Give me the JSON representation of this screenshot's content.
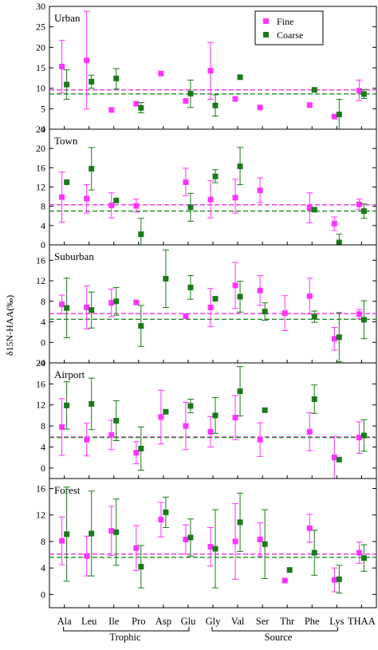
{
  "chart_data": {
    "type": "scatter",
    "ylabel": "δ15N-HAA(‰)",
    "categories": [
      "Ala",
      "Leu",
      "Ile",
      "Pro",
      "Asp",
      "Glu",
      "Gly",
      "Val",
      "Ser",
      "Thr",
      "Phe",
      "Lys",
      "THAA"
    ],
    "groups": [
      {
        "label": "Trophic",
        "from": "Ala",
        "to": "Glu"
      },
      {
        "label": "Source",
        "from": "Gly",
        "to": "Lys"
      }
    ],
    "legend": {
      "entries": [
        "Fine",
        "Coarse"
      ],
      "placement": "top-right"
    },
    "colors": {
      "Fine": "#ff33ff",
      "Coarse": "#1a7a1a",
      "fine_dash": "#e830e8",
      "coarse_dash": "#2a8a2a"
    },
    "panels": [
      {
        "title": "Urban",
        "ylim": [
          0,
          30
        ],
        "yticks": [
          0,
          5,
          10,
          15,
          20,
          25,
          30
        ],
        "fine_mean": 9.6,
        "coarse_mean": 8.6,
        "fine": [
          [
            15.3,
            8.8,
            21.7
          ],
          [
            16.8,
            4.9,
            28.8
          ],
          [
            4.7,
            null,
            null
          ],
          [
            6.2,
            null,
            null
          ],
          [
            13.6,
            null,
            null
          ],
          [
            6.9,
            null,
            null
          ],
          [
            14.3,
            7.3,
            21.2
          ],
          [
            7.4,
            null,
            null
          ],
          [
            5.3,
            null,
            null
          ],
          [
            null,
            null,
            null
          ],
          [
            5.9,
            null,
            null
          ],
          [
            3.1,
            null,
            null
          ],
          [
            9.4,
            7.0,
            12.0
          ]
        ],
        "coarse": [
          [
            10.9,
            7.3,
            14.5
          ],
          [
            11.6,
            10.0,
            13.2
          ],
          [
            12.4,
            9.8,
            14.8
          ],
          [
            5.2,
            4.0,
            6.5
          ],
          [
            null,
            null,
            null
          ],
          [
            8.7,
            5.3,
            12.0
          ],
          [
            5.8,
            3.2,
            8.4
          ],
          [
            12.7,
            null,
            null
          ],
          [
            null,
            null,
            null
          ],
          [
            null,
            null,
            null
          ],
          [
            9.6,
            null,
            null
          ],
          [
            3.6,
            -0.2,
            7.3
          ],
          [
            8.6,
            7.5,
            9.7
          ]
        ]
      },
      {
        "title": "Town",
        "ylim": [
          0,
          24
        ],
        "yticks": [
          0,
          4,
          8,
          12,
          16,
          20,
          24
        ],
        "fine_mean": 8.3,
        "coarse_mean": 7.0,
        "fine": [
          [
            9.9,
            4.7,
            15.1
          ],
          [
            9.6,
            6.6,
            12.5
          ],
          [
            8.2,
            5.6,
            10.8
          ],
          [
            8.1,
            6.8,
            9.5
          ],
          [
            null,
            null,
            null
          ],
          [
            13.0,
            10.2,
            15.9
          ],
          [
            9.4,
            5.6,
            13.3
          ],
          [
            9.8,
            6.6,
            13.6
          ],
          [
            11.3,
            8.8,
            13.9
          ],
          [
            null,
            null,
            null
          ],
          [
            7.7,
            4.6,
            10.8
          ],
          [
            4.4,
            3.0,
            5.8
          ],
          [
            8.4,
            7.3,
            9.5
          ]
        ],
        "coarse": [
          [
            13.0,
            null,
            null
          ],
          [
            15.8,
            11.4,
            20.2
          ],
          [
            9.2,
            null,
            null
          ],
          [
            2.2,
            -1.0,
            5.5
          ],
          [
            null,
            null,
            null
          ],
          [
            7.8,
            4.9,
            10.7
          ],
          [
            14.2,
            12.9,
            15.6
          ],
          [
            16.3,
            12.5,
            20.2
          ],
          [
            null,
            null,
            null
          ],
          [
            null,
            null,
            null
          ],
          [
            7.3,
            null,
            null
          ],
          [
            0.5,
            -0.6,
            2.2
          ],
          [
            7.0,
            5.5,
            8.5
          ]
        ]
      },
      {
        "title": "Suburban",
        "ylim": [
          -4,
          19
        ],
        "yticks": [
          -4,
          0,
          4,
          8,
          12,
          16
        ],
        "fine_mean": 5.6,
        "coarse_mean": 4.5,
        "fine": [
          [
            7.4,
            5.6,
            9.2
          ],
          [
            6.8,
            2.6,
            11.0
          ],
          [
            7.7,
            5.0,
            10.4
          ],
          [
            7.8,
            null,
            null
          ],
          [
            null,
            null,
            null
          ],
          [
            5.1,
            null,
            null
          ],
          [
            6.8,
            3.1,
            10.5
          ],
          [
            11.1,
            6.6,
            15.6
          ],
          [
            10.1,
            7.2,
            13.0
          ],
          [
            5.7,
            2.3,
            9.1
          ],
          [
            9.0,
            5.5,
            12.5
          ],
          [
            0.7,
            -1.5,
            2.9
          ],
          [
            5.5,
            4.6,
            6.4
          ]
        ],
        "coarse": [
          [
            6.7,
            0.9,
            12.5
          ],
          [
            6.3,
            2.8,
            9.8
          ],
          [
            8.0,
            5.3,
            10.7
          ],
          [
            3.2,
            -0.8,
            7.2
          ],
          [
            12.4,
            6.8,
            18.0
          ],
          [
            10.7,
            8.4,
            13.0
          ],
          [
            8.5,
            null,
            null
          ],
          [
            8.9,
            5.9,
            11.9
          ],
          [
            6.0,
            4.3,
            7.7
          ],
          [
            null,
            null,
            null
          ],
          [
            5.0,
            3.9,
            6.1
          ],
          [
            1.0,
            -3.8,
            5.8
          ],
          [
            4.4,
            0.7,
            8.1
          ]
        ]
      },
      {
        "title": "Airport",
        "ylim": [
          -2,
          20
        ],
        "yticks": [
          0,
          4,
          8,
          12,
          16,
          20
        ],
        "fine_mean": 5.9,
        "coarse_mean": 5.8,
        "fine": [
          [
            7.8,
            2.4,
            13.2
          ],
          [
            5.4,
            2.3,
            8.5
          ],
          [
            6.3,
            3.5,
            9.1
          ],
          [
            2.9,
            0.8,
            5.0
          ],
          [
            9.7,
            4.6,
            14.8
          ],
          [
            8.0,
            3.5,
            12.5
          ],
          [
            6.9,
            4.0,
            9.8
          ],
          [
            9.6,
            5.4,
            13.8
          ],
          [
            5.4,
            2.2,
            8.6
          ],
          [
            null,
            null,
            null
          ],
          [
            6.9,
            3.3,
            10.5
          ],
          [
            2.0,
            -2.0,
            6.0
          ],
          [
            5.8,
            2.8,
            8.8
          ]
        ],
        "coarse": [
          [
            11.9,
            7.4,
            16.4
          ],
          [
            12.2,
            7.3,
            17.1
          ],
          [
            9.0,
            5.2,
            12.8
          ],
          [
            3.7,
            -0.4,
            7.8
          ],
          [
            10.7,
            null,
            null
          ],
          [
            11.8,
            10.5,
            13.1
          ],
          [
            10.0,
            6.6,
            13.4
          ],
          [
            14.6,
            9.9,
            19.3
          ],
          [
            11.0,
            null,
            null
          ],
          [
            null,
            null,
            null
          ],
          [
            13.1,
            10.4,
            15.8
          ],
          [
            1.6,
            null,
            null
          ],
          [
            6.2,
            3.2,
            9.2
          ]
        ]
      },
      {
        "title": "Forest",
        "ylim": [
          -2,
          17.5
        ],
        "yticks": [
          0,
          4,
          8,
          12,
          16
        ],
        "fine_mean": 6.1,
        "coarse_mean": 5.6,
        "fine": [
          [
            8.1,
            4.5,
            11.7
          ],
          [
            5.8,
            2.8,
            8.8
          ],
          [
            9.6,
            5.9,
            13.3
          ],
          [
            7.0,
            3.6,
            10.4
          ],
          [
            11.3,
            8.7,
            13.9
          ],
          [
            8.3,
            6.1,
            10.5
          ],
          [
            7.2,
            4.3,
            10.1
          ],
          [
            8.0,
            2.3,
            13.7
          ],
          [
            8.3,
            5.8,
            10.8
          ],
          [
            2.1,
            null,
            null
          ],
          [
            10.0,
            7.9,
            12.1
          ],
          [
            2.2,
            0.4,
            4.0
          ],
          [
            6.3,
            4.7,
            7.9
          ]
        ],
        "coarse": [
          [
            9.1,
            2.0,
            16.2
          ],
          [
            9.2,
            2.8,
            15.6
          ],
          [
            9.4,
            4.4,
            14.4
          ],
          [
            4.2,
            1.0,
            7.4
          ],
          [
            12.4,
            10.1,
            14.7
          ],
          [
            8.6,
            5.8,
            11.4
          ],
          [
            6.9,
            1.0,
            12.8
          ],
          [
            10.9,
            6.5,
            15.3
          ],
          [
            7.6,
            2.4,
            12.8
          ],
          [
            3.7,
            null,
            null
          ],
          [
            6.3,
            2.9,
            9.7
          ],
          [
            2.3,
            0.2,
            4.4
          ],
          [
            5.5,
            3.5,
            7.5
          ]
        ]
      }
    ]
  }
}
